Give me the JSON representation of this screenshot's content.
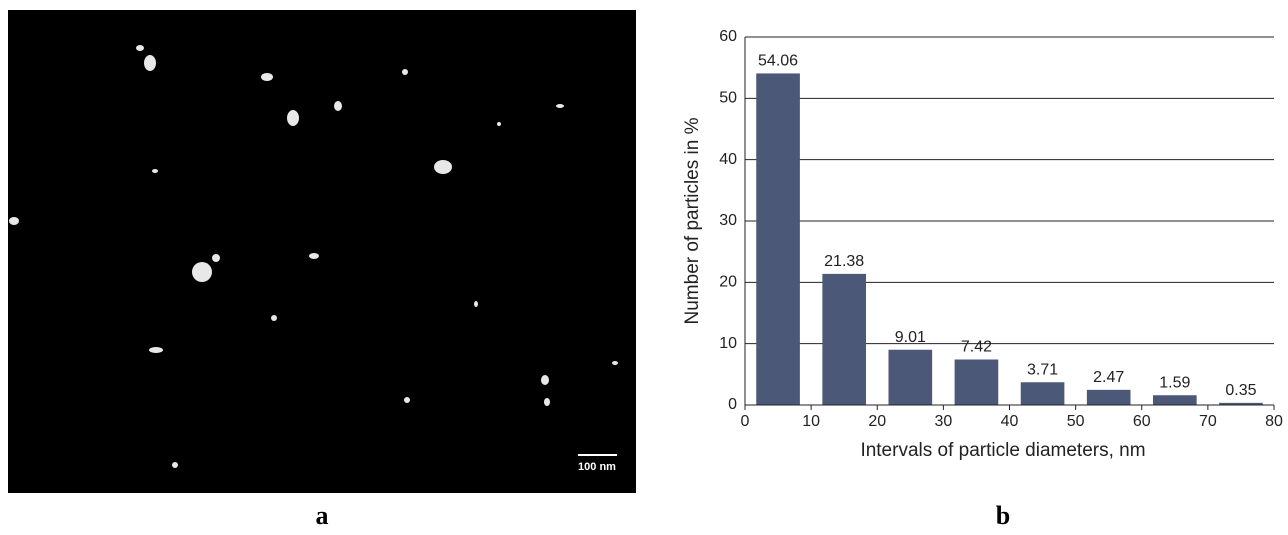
{
  "image_panel": {
    "scale_bar": "100 nm",
    "caption": "a"
  },
  "chart_caption": "b",
  "chart_data": {
    "type": "histogram",
    "x_label": "Intervals of particle diameters, nm",
    "y_label": "Number of particles in %",
    "bins": [
      0,
      10,
      20,
      30,
      40,
      50,
      60,
      70,
      80
    ],
    "values": [
      54.06,
      21.38,
      9.01,
      7.42,
      3.71,
      2.47,
      1.59,
      0.35
    ],
    "color": "#4b5878",
    "xlim": [
      0,
      80
    ],
    "xticks": [
      0,
      10,
      20,
      30,
      40,
      50,
      60,
      70,
      80
    ],
    "ylim": [
      0,
      60
    ],
    "yticks": [
      0,
      10,
      20,
      30,
      40,
      50,
      60
    ],
    "grid": true
  }
}
